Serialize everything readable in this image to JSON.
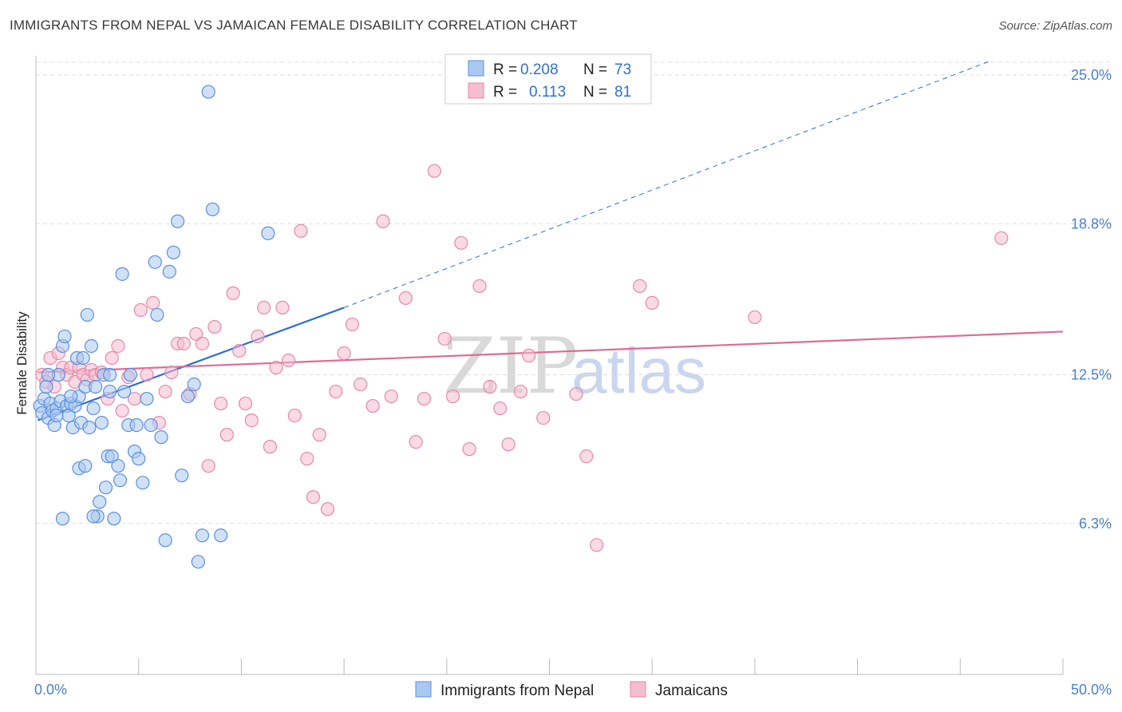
{
  "header": {
    "title": "IMMIGRANTS FROM NEPAL VS JAMAICAN FEMALE DISABILITY CORRELATION CHART",
    "source": "Source: ZipAtlas.com"
  },
  "watermark": {
    "part1": "ZIP",
    "part2": "atlas"
  },
  "legend_box": {
    "rows": [
      {
        "r_label": "R =",
        "r_value": "0.208",
        "n_label": "N =",
        "n_value": "73"
      },
      {
        "r_label": "R =",
        "r_value": "0.113",
        "n_label": "N =",
        "n_value": "81"
      }
    ]
  },
  "bottom_legend": [
    "Immigrants from Nepal",
    "Jamaicans"
  ],
  "colors": {
    "nepal_fill": "#aac8f0",
    "nepal_stroke": "#5b8fdc",
    "nepal_line": "#2f6fd1",
    "jam_fill": "#f6bcd0",
    "jam_stroke": "#e48aa8",
    "jam_line": "#e06a92",
    "grid": "#dddddd",
    "tick_label": "#4a7fcf"
  },
  "chart_data": {
    "type": "scatter",
    "ylabel": "Female Disability",
    "xlim": [
      0,
      50
    ],
    "ylim": [
      0,
      25.8
    ],
    "x_tick_labels": [
      "0.0%",
      "50.0%"
    ],
    "y_ticks": [
      6.3,
      12.5,
      18.8,
      25.0
    ],
    "y_tick_labels": [
      "6.3%",
      "12.5%",
      "18.8%",
      "25.0%"
    ],
    "grid": true,
    "series": [
      {
        "name": "Immigrants from Nepal",
        "trend": {
          "x0": 0.1,
          "y0": 10.6,
          "x1": 15.0,
          "y1": 15.3,
          "extend_to_x": 46.5,
          "extend_to_y": 25.6
        },
        "points": [
          [
            0.2,
            11.2
          ],
          [
            0.3,
            10.9
          ],
          [
            0.4,
            11.5
          ],
          [
            0.5,
            12.0
          ],
          [
            0.6,
            10.7
          ],
          [
            0.7,
            11.3
          ],
          [
            0.8,
            11.0
          ],
          [
            0.9,
            10.4
          ],
          [
            1.0,
            11.1
          ],
          [
            1.1,
            12.5
          ],
          [
            1.2,
            11.4
          ],
          [
            1.3,
            13.7
          ],
          [
            1.4,
            14.1
          ],
          [
            1.5,
            11.2
          ],
          [
            1.6,
            10.8
          ],
          [
            1.7,
            11.3
          ],
          [
            1.8,
            10.3
          ],
          [
            1.9,
            11.2
          ],
          [
            2.0,
            13.2
          ],
          [
            2.1,
            11.6
          ],
          [
            2.2,
            10.5
          ],
          [
            2.3,
            13.2
          ],
          [
            2.4,
            12.0
          ],
          [
            2.5,
            15.0
          ],
          [
            2.6,
            10.3
          ],
          [
            2.7,
            13.7
          ],
          [
            2.8,
            11.1
          ],
          [
            2.9,
            12.0
          ],
          [
            3.0,
            6.6
          ],
          [
            3.1,
            7.2
          ],
          [
            3.2,
            10.5
          ],
          [
            3.3,
            12.5
          ],
          [
            3.4,
            7.8
          ],
          [
            3.5,
            9.1
          ],
          [
            3.6,
            11.8
          ],
          [
            3.7,
            9.1
          ],
          [
            3.8,
            6.5
          ],
          [
            4.0,
            8.7
          ],
          [
            4.1,
            8.1
          ],
          [
            4.2,
            16.7
          ],
          [
            4.3,
            11.8
          ],
          [
            4.5,
            10.4
          ],
          [
            4.6,
            12.5
          ],
          [
            4.8,
            9.3
          ],
          [
            4.9,
            10.4
          ],
          [
            5.0,
            9.0
          ],
          [
            5.2,
            8.0
          ],
          [
            5.4,
            11.5
          ],
          [
            5.6,
            10.4
          ],
          [
            5.8,
            17.2
          ],
          [
            5.9,
            15.0
          ],
          [
            6.1,
            9.9
          ],
          [
            6.3,
            5.6
          ],
          [
            6.5,
            16.8
          ],
          [
            6.7,
            17.6
          ],
          [
            6.9,
            18.9
          ],
          [
            7.1,
            8.3
          ],
          [
            7.4,
            11.6
          ],
          [
            7.7,
            12.1
          ],
          [
            7.9,
            4.7
          ],
          [
            8.1,
            5.8
          ],
          [
            8.4,
            24.3
          ],
          [
            8.6,
            19.4
          ],
          [
            9.0,
            5.8
          ],
          [
            2.1,
            8.6
          ],
          [
            2.4,
            8.7
          ],
          [
            1.3,
            6.5
          ],
          [
            0.6,
            12.5
          ],
          [
            1.0,
            10.8
          ],
          [
            1.7,
            11.6
          ],
          [
            2.8,
            6.6
          ],
          [
            11.3,
            18.4
          ],
          [
            3.6,
            12.5
          ]
        ]
      },
      {
        "name": "Jamaicans",
        "trend": {
          "x0": 0.1,
          "y0": 12.6,
          "x1": 50.0,
          "y1": 14.3
        },
        "points": [
          [
            0.3,
            12.5
          ],
          [
            0.5,
            12.2
          ],
          [
            0.7,
            13.2
          ],
          [
            0.9,
            12.0
          ],
          [
            1.1,
            13.4
          ],
          [
            1.3,
            12.8
          ],
          [
            1.5,
            12.5
          ],
          [
            1.7,
            12.8
          ],
          [
            1.9,
            12.2
          ],
          [
            2.1,
            12.8
          ],
          [
            2.3,
            12.5
          ],
          [
            2.5,
            12.3
          ],
          [
            2.7,
            12.7
          ],
          [
            2.9,
            12.5
          ],
          [
            3.2,
            12.6
          ],
          [
            3.5,
            11.5
          ],
          [
            3.7,
            13.2
          ],
          [
            4.0,
            13.7
          ],
          [
            4.2,
            11.0
          ],
          [
            4.5,
            12.4
          ],
          [
            4.8,
            11.5
          ],
          [
            5.1,
            15.2
          ],
          [
            5.4,
            12.5
          ],
          [
            5.7,
            15.5
          ],
          [
            6.0,
            10.5
          ],
          [
            6.3,
            11.8
          ],
          [
            6.6,
            12.6
          ],
          [
            6.9,
            13.8
          ],
          [
            7.2,
            13.8
          ],
          [
            7.5,
            11.7
          ],
          [
            7.8,
            14.2
          ],
          [
            8.1,
            13.8
          ],
          [
            8.4,
            8.7
          ],
          [
            8.7,
            14.5
          ],
          [
            9.0,
            11.3
          ],
          [
            9.3,
            10.0
          ],
          [
            9.6,
            15.9
          ],
          [
            9.9,
            13.5
          ],
          [
            10.2,
            11.3
          ],
          [
            10.5,
            10.6
          ],
          [
            10.8,
            14.1
          ],
          [
            11.1,
            15.3
          ],
          [
            11.4,
            9.5
          ],
          [
            11.7,
            12.8
          ],
          [
            12.0,
            15.3
          ],
          [
            12.3,
            13.1
          ],
          [
            12.6,
            10.8
          ],
          [
            12.9,
            18.5
          ],
          [
            13.2,
            9.0
          ],
          [
            13.5,
            7.4
          ],
          [
            13.8,
            10.0
          ],
          [
            14.2,
            6.9
          ],
          [
            14.6,
            11.8
          ],
          [
            15.0,
            13.4
          ],
          [
            15.4,
            14.6
          ],
          [
            15.8,
            12.1
          ],
          [
            16.4,
            11.2
          ],
          [
            16.9,
            18.9
          ],
          [
            17.3,
            11.6
          ],
          [
            18.0,
            15.7
          ],
          [
            18.5,
            9.7
          ],
          [
            18.9,
            11.5
          ],
          [
            19.4,
            21.0
          ],
          [
            19.9,
            14.0
          ],
          [
            20.3,
            11.6
          ],
          [
            20.7,
            18.0
          ],
          [
            21.1,
            9.4
          ],
          [
            21.6,
            16.2
          ],
          [
            22.1,
            12.0
          ],
          [
            22.6,
            11.1
          ],
          [
            23.0,
            9.6
          ],
          [
            23.6,
            11.8
          ],
          [
            24.0,
            13.3
          ],
          [
            24.7,
            10.7
          ],
          [
            26.3,
            11.7
          ],
          [
            26.8,
            9.1
          ],
          [
            27.3,
            5.4
          ],
          [
            29.4,
            16.2
          ],
          [
            30.0,
            15.5
          ],
          [
            35.0,
            14.9
          ],
          [
            47.0,
            18.2
          ]
        ]
      }
    ]
  }
}
